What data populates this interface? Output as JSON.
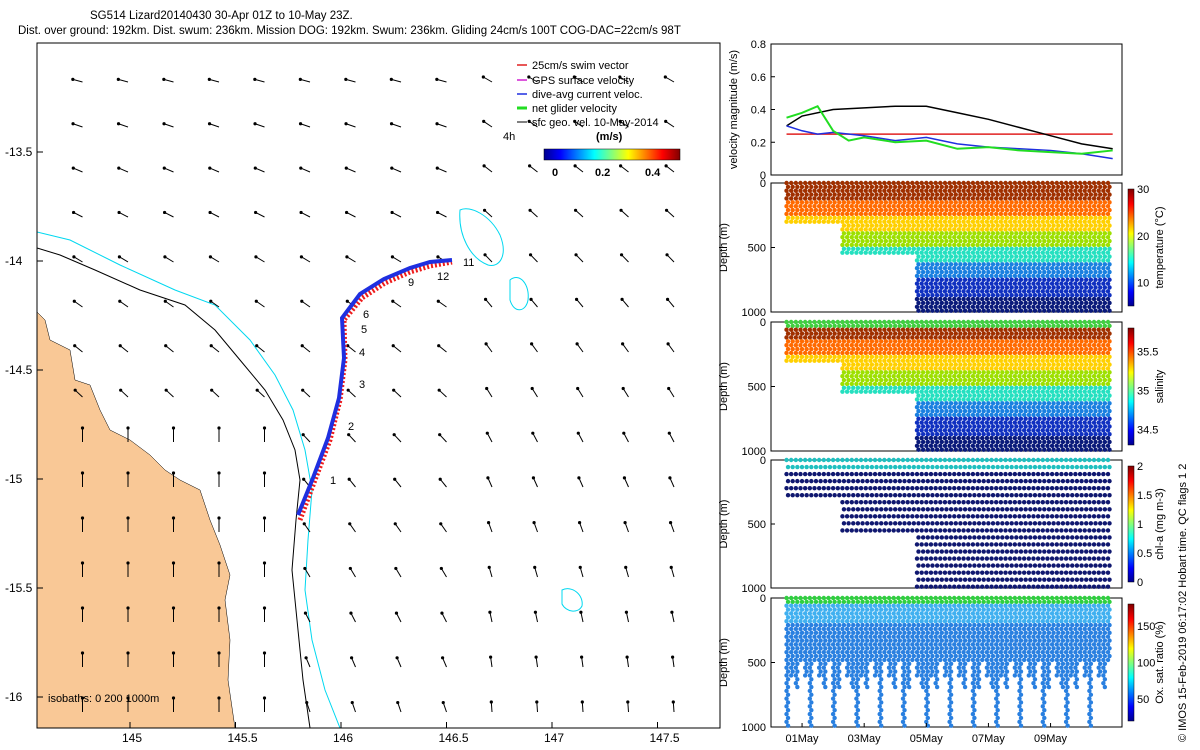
{
  "title_line1": "SG514 Lizard20140430 30-Apr 01Z to 10-May 23Z.",
  "title_line2": "Dist. over ground: 192km. Dist. swum: 236km. Mission DOG: 192km. Swum: 236km. Gliding 24cm/s 100T COG-DAC=22cm/s 98T",
  "credit": "© IMOS 15-Feb-2019 06:17:02 Hobart time. QC flags 1  2",
  "colors": {
    "land": "#f9c896",
    "track_blue": "#1f2fe0",
    "track_red": "#ee1b1b",
    "isobath_200": "#000000",
    "isobath_1000": "#00d8f0",
    "net": "#22dd22"
  },
  "map": {
    "lon_ticks": [
      "145",
      "145.5",
      "146",
      "146.5",
      "147",
      "147.5"
    ],
    "lat_ticks": [
      "-13.5",
      "-14",
      "-14.5",
      "-15",
      "-15.5",
      "-16"
    ],
    "isobath_label": "isobaths: 0   200  1000m",
    "legend": [
      {
        "label": "25cm/s swim vector",
        "color": "#e02020"
      },
      {
        "label": "GPS surface velocity",
        "color": "#d020d0"
      },
      {
        "label": "dive-avg current veloc.",
        "color": "#1f2fe0"
      },
      {
        "label": "net glider velocity",
        "color": "#22dd22"
      },
      {
        "label": "sfc geo. vel. 10-May-2014",
        "color": "#000000"
      }
    ],
    "colorbar_unit": "(m/s)",
    "colorbar_ticks": [
      "0",
      "0.2",
      "0.4"
    ],
    "hour_label": "4h",
    "day_labels": [
      "1",
      "2",
      "3",
      "4",
      "5",
      "6",
      "9",
      "11",
      "12"
    ]
  },
  "chart_data": [
    {
      "type": "line",
      "ylabel": "velocity magnitude (m/s)",
      "ylim": [
        0,
        0.8
      ],
      "yticks": [
        "0",
        "0.2",
        "0.4",
        "0.6",
        "0.8"
      ],
      "series": [
        {
          "name": "speed through water",
          "color": "#e02020",
          "x": [
            0.5,
            11
          ],
          "values": [
            0.25,
            0.25
          ]
        },
        {
          "name": "surface geostrophic",
          "color": "#000000",
          "x": [
            0.5,
            1,
            2,
            3,
            4,
            5,
            6,
            7,
            8,
            9,
            10,
            11
          ],
          "values": [
            0.3,
            0.36,
            0.4,
            0.41,
            0.42,
            0.42,
            0.38,
            0.34,
            0.29,
            0.24,
            0.19,
            0.16
          ]
        },
        {
          "name": "dive-avg current",
          "color": "#1f2fe0",
          "x": [
            0.5,
            1,
            1.5,
            2,
            3,
            4,
            5,
            6,
            7,
            8,
            9,
            10,
            11
          ],
          "values": [
            0.3,
            0.27,
            0.25,
            0.26,
            0.24,
            0.21,
            0.23,
            0.19,
            0.17,
            0.16,
            0.15,
            0.13,
            0.1
          ]
        },
        {
          "name": "net glider velocity",
          "color": "#22dd22",
          "x": [
            0.5,
            1,
            1.5,
            2,
            2.5,
            3,
            4,
            5,
            6,
            7,
            8,
            9,
            10,
            11
          ],
          "values": [
            0.35,
            0.38,
            0.42,
            0.27,
            0.21,
            0.23,
            0.2,
            0.21,
            0.16,
            0.17,
            0.15,
            0.14,
            0.13,
            0.15
          ]
        }
      ]
    },
    {
      "type": "scatter",
      "ylabel": "Depth (m)",
      "cbar_label": "temperature (°C)",
      "clim": [
        5,
        30
      ],
      "cbar_ticks": [
        "10",
        "20",
        "30"
      ],
      "yticks": [
        "0",
        "500",
        "1000"
      ],
      "ylim": [
        0,
        1000
      ]
    },
    {
      "type": "scatter",
      "ylabel": "Depth (m)",
      "cbar_label": "salinity",
      "clim": [
        34.3,
        35.8
      ],
      "cbar_ticks": [
        "34.5",
        "35",
        "35.5"
      ],
      "yticks": [
        "0",
        "500",
        "1000"
      ],
      "ylim": [
        0,
        1000
      ]
    },
    {
      "type": "scatter",
      "ylabel": "Depth (m)",
      "cbar_label": "chl-a (mg m-3)",
      "clim": [
        0,
        2
      ],
      "cbar_ticks": [
        "0",
        "0.5",
        "1",
        "1.5",
        "2"
      ],
      "yticks": [
        "0",
        "500",
        "1000"
      ],
      "ylim": [
        0,
        1000
      ]
    },
    {
      "type": "scatter",
      "ylabel": "Depth (m)",
      "cbar_label": "Ox. sat. ratio (%)",
      "clim": [
        20,
        180
      ],
      "cbar_ticks": [
        "50",
        "100",
        "150"
      ],
      "yticks": [
        "0",
        "500",
        "1000"
      ],
      "ylim": [
        0,
        1000
      ],
      "xticks": [
        "01May",
        "03May",
        "05May",
        "07May",
        "09May"
      ]
    }
  ]
}
